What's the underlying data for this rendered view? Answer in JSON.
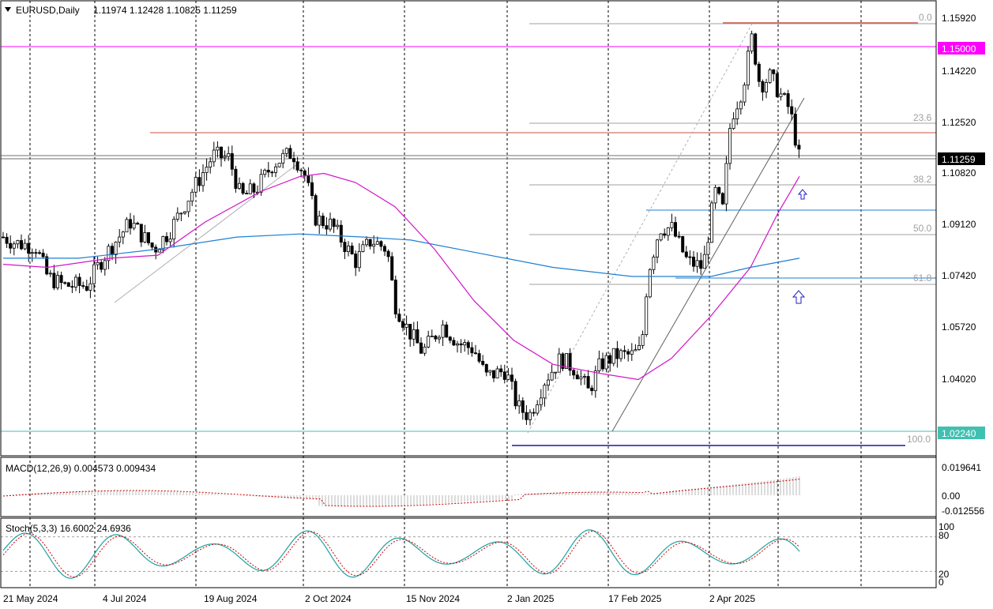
{
  "header": {
    "symbol": "EURUSD,Daily",
    "ohlc": "1.11974 1.12428 1.10825 1.11259"
  },
  "colors": {
    "bull": "#000000",
    "bear": "#000000",
    "ma_fast": "#d413c8",
    "ma_slow": "#1e7fd1",
    "magenta_line": "#ff00ff",
    "resistance": "#c8503c",
    "support": "#40c0b0",
    "fib": "#a0a0a0",
    "blue_line": "#1e7fd1",
    "macd_signal": "#c80000",
    "stoch_main": "#20a0a0",
    "stoch_signal": "#c80000"
  },
  "price_axis": {
    "ticks": [
      "1.15920",
      "1.14220",
      "1.12520",
      "1.10820",
      "1.09120",
      "1.07420",
      "1.05720",
      "1.04020"
    ],
    "current_price": "1.11259",
    "level_magenta": "1.15000",
    "level_support": "1.02240"
  },
  "fib_labels": [
    "0.0",
    "23.6",
    "38.2",
    "50.0",
    "61.8",
    "100.0"
  ],
  "macd": {
    "label": "MACD(12,26,9) 0.004573 0.009434",
    "ticks": [
      "0.019641",
      "0.00",
      "-0.012556"
    ]
  },
  "stoch": {
    "label": "Stoch(5,3,3) 16.6002 24.6936",
    "ticks": [
      "100",
      "80",
      "20",
      "0"
    ]
  },
  "time_axis": [
    "21 May 2024",
    "4 Jul 2024",
    "19 Aug 2024",
    "2 Oct 2024",
    "15 Nov 2024",
    "2 Jan 2025",
    "17 Feb 2025",
    "2 Apr 2025"
  ],
  "chart_data": {
    "type": "line",
    "title": "EURUSD,Daily",
    "x": [
      "2024-05-21",
      "2024-06-12",
      "2024-07-04",
      "2024-07-26",
      "2024-08-19",
      "2024-09-10",
      "2024-10-02",
      "2024-10-24",
      "2024-11-15",
      "2024-12-09",
      "2025-01-02",
      "2025-01-24",
      "2025-02-17",
      "2025-03-11",
      "2025-04-02",
      "2025-04-22",
      "2025-05-12"
    ],
    "series": [
      {
        "values": [
          1.087,
          1.071,
          1.078,
          1.089,
          1.106,
          1.114,
          1.103,
          1.082,
          1.06,
          1.049,
          1.03,
          1.043,
          1.045,
          1.088,
          1.101,
          1.152,
          1.1126
        ]
      }
    ],
    "ylim": [
      1.019,
      1.163
    ],
    "grid": true
  }
}
